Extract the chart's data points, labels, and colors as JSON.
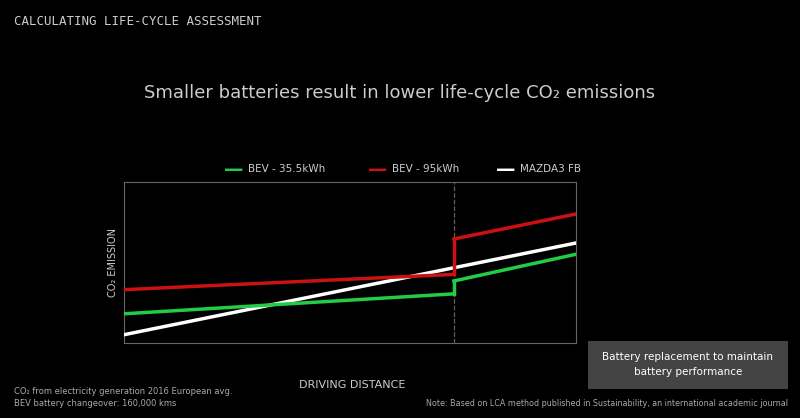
{
  "bg_color": "#000000",
  "fig_title": "CALCULATING LIFE-CYCLE ASSESSMENT",
  "subtitle": "Smaller batteries result in lower life-cycle CO₂ emissions",
  "subtitle_fontsize": 13,
  "fig_title_fontsize": 9,
  "ylabel": "CO₂ EMISSION",
  "xlabel": "DRIVING DISTANCE",
  "legend_entries": [
    "BEV - 35.5kWh",
    "BEV - 95kWh",
    "MAZDA3 FB"
  ],
  "legend_colors": [
    "#22cc44",
    "#cc1111",
    "#ffffff"
  ],
  "note_left": "CO₂ from electricity generation 2016 European avg.\nBEV battery changeover: 160,000 kms",
  "note_right": "Note: Based on LCA method published in Sustainability, an international academic journal",
  "annotation_box": "Battery replacement to maintain\nbattery performance",
  "plot_bg": "#000000",
  "axis_color": "#666666",
  "bev_small_color": "#22cc44",
  "bev_large_color": "#cc1111",
  "mazda_color": "#ffffff",
  "vline_color": "#888888",
  "annotation_bg": "#444444",
  "text_color": "#cccccc",
  "note_color": "#aaaaaa"
}
